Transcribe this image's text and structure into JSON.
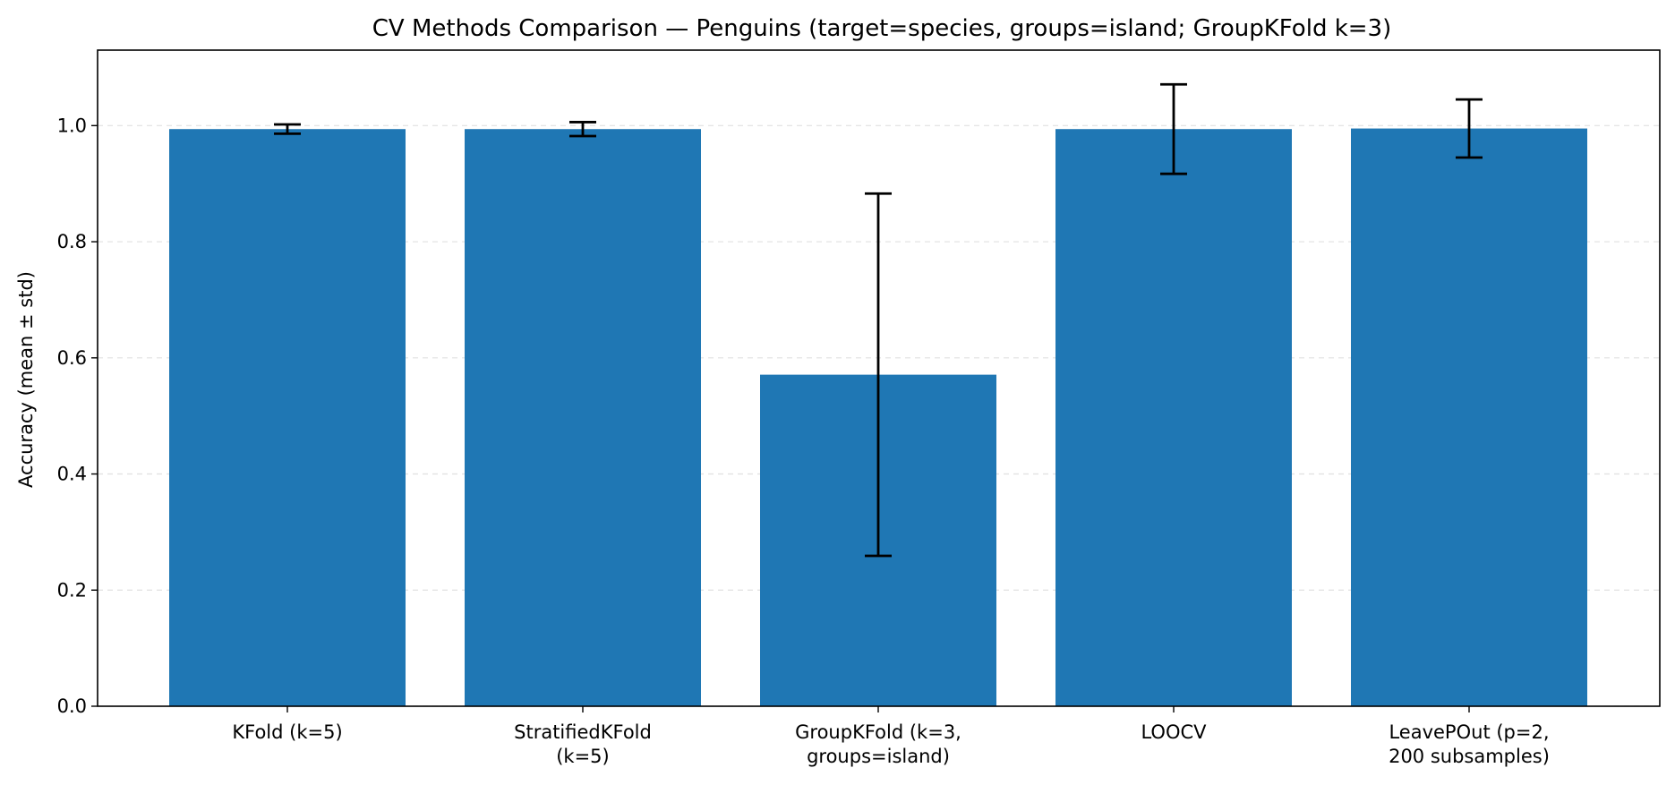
{
  "chart_data": {
    "type": "bar",
    "title": "CV Methods Comparison — Penguins (target=species, groups=island; GroupKFold k=3)",
    "xlabel": "",
    "ylabel": "Accuracy (mean ± std)",
    "categories": [
      [
        "KFold (k=5)"
      ],
      [
        "StratifiedKFold",
        "(k=5)"
      ],
      [
        "GroupKFold (k=3,",
        "groups=island)"
      ],
      [
        "LOOCV"
      ],
      [
        "LeavePOut (p=2,",
        "200 subsamples)"
      ]
    ],
    "values": [
      0.994,
      0.994,
      0.571,
      0.994,
      0.995
    ],
    "errors": [
      0.008,
      0.012,
      0.312,
      0.077,
      0.05
    ],
    "ylim": [
      0,
      1.13
    ],
    "yticks": [
      0.0,
      0.2,
      0.4,
      0.6,
      0.8,
      1.0
    ],
    "ytick_labels": [
      "0.0",
      "0.2",
      "0.4",
      "0.6",
      "0.8",
      "1.0"
    ],
    "grid": true,
    "bar_color": "#1f77b4",
    "error_color": "#000000"
  }
}
